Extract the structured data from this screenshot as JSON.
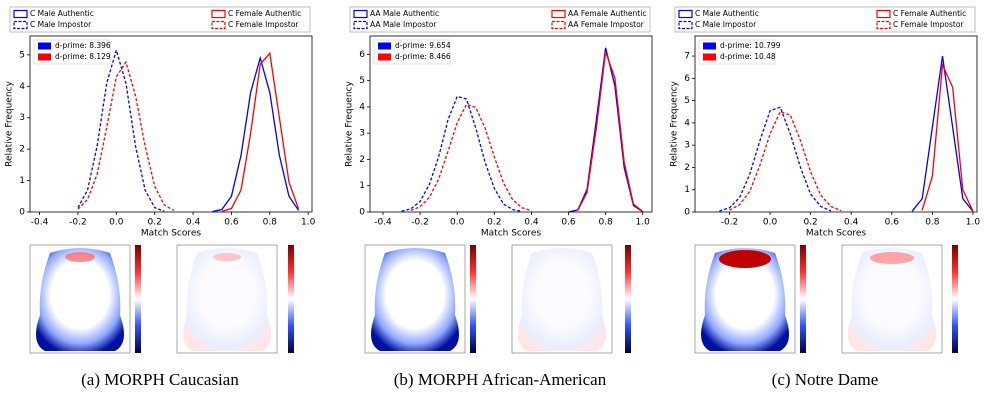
{
  "chart_data": [
    {
      "type": "line",
      "xlabel": "Match Scores",
      "ylabel": "Relative Frequency",
      "xlim": [
        -0.45,
        1.02
      ],
      "xticks": [
        -0.4,
        -0.2,
        {
          "value": 0,
          "label": "0.0"
        },
        0.2,
        0.4,
        0.6,
        0.8,
        {
          "value": 1,
          "label": "1.0"
        }
      ],
      "ylim": [
        0,
        5.6
      ],
      "yticks": [
        0,
        1,
        2,
        3,
        4,
        5
      ],
      "annotations": [
        {
          "text": "d-prime: 8.396",
          "color": "#0000ff"
        },
        {
          "text": "d-prime: 8.129",
          "color": "#ff0000"
        }
      ],
      "series": [
        {
          "name": "C Male Authentic",
          "color": "#0000ff",
          "dashed": false,
          "x": [
            0.5,
            0.55,
            0.6,
            0.65,
            0.7,
            0.75,
            0.8,
            0.85,
            0.9,
            0.95
          ],
          "values": [
            0.01,
            0.08,
            0.5,
            1.8,
            3.8,
            4.9,
            3.8,
            1.8,
            0.5,
            0.05
          ]
        },
        {
          "name": "C Male Impostor",
          "color": "#0000ff",
          "dashed": true,
          "x": [
            -0.2,
            -0.15,
            -0.1,
            -0.05,
            0,
            0.05,
            0.1,
            0.15,
            0.2,
            0.25
          ],
          "values": [
            0.14,
            0.7,
            2.1,
            4.1,
            5.15,
            4.1,
            2.1,
            0.7,
            0.14,
            0.02
          ]
        },
        {
          "name": "C Female Authentic",
          "color": "#ff0000",
          "dashed": false,
          "x": [
            0.55,
            0.6,
            0.65,
            0.7,
            0.75,
            0.8,
            0.85,
            0.9,
            0.95
          ],
          "values": [
            0.02,
            0.11,
            0.7,
            2.5,
            4.7,
            5.05,
            3.0,
            0.95,
            0.1
          ]
        },
        {
          "name": "C Female Impostor",
          "color": "#ff0000",
          "dashed": true,
          "x": [
            -0.2,
            -0.15,
            -0.1,
            -0.05,
            0,
            0.05,
            0.1,
            0.15,
            0.2,
            0.25,
            0.3
          ],
          "values": [
            0.09,
            0.4,
            1.2,
            2.7,
            4.3,
            4.77,
            3.7,
            2.1,
            0.82,
            0.22,
            0.05
          ]
        }
      ]
    },
    {
      "type": "line",
      "xlabel": "Match Scores",
      "ylabel": "Relative Frequency",
      "xlim": [
        -0.47,
        1.05
      ],
      "xticks": [
        -0.4,
        -0.2,
        {
          "value": 0,
          "label": "0.0"
        },
        0.2,
        0.4,
        0.6,
        0.8,
        {
          "value": 1,
          "label": "1.0"
        }
      ],
      "ylim": [
        0,
        6.7
      ],
      "yticks": [
        0,
        1,
        2,
        3,
        4,
        5,
        6
      ],
      "annotations": [
        {
          "text": "d-prime: 9.654",
          "color": "#0000ff"
        },
        {
          "text": "d-prime: 8.466",
          "color": "#ff0000"
        }
      ],
      "series": [
        {
          "name": "AA Male Authentic",
          "color": "#0000ff",
          "dashed": false,
          "x": [
            0.6,
            0.65,
            0.7,
            0.75,
            0.8,
            0.85,
            0.9,
            0.95,
            1.0
          ],
          "values": [
            0,
            0.08,
            0.86,
            3.5,
            6.25,
            4.8,
            1.7,
            0.25,
            0.01
          ]
        },
        {
          "name": "AA Male Impostor",
          "color": "#0000ff",
          "dashed": true,
          "x": [
            -0.3,
            -0.25,
            -0.2,
            -0.15,
            -0.1,
            -0.05,
            0,
            0.05,
            0.1,
            0.15,
            0.2,
            0.25,
            0.3,
            0.35
          ],
          "values": [
            0.03,
            0.12,
            0.4,
            1.05,
            2.1,
            3.5,
            4.4,
            4.3,
            3.2,
            1.9,
            0.9,
            0.3,
            0.09,
            0.02
          ]
        },
        {
          "name": "AA Female Authentic",
          "color": "#ff0000",
          "dashed": false,
          "x": [
            0.65,
            0.7,
            0.75,
            0.8,
            0.85,
            0.9,
            0.95,
            1.0
          ],
          "values": [
            0.06,
            0.75,
            3.2,
            6.1,
            5.1,
            1.9,
            0.3,
            0.02
          ]
        },
        {
          "name": "AA Female Impostor",
          "color": "#ff0000",
          "dashed": true,
          "x": [
            -0.25,
            -0.2,
            -0.15,
            -0.1,
            -0.05,
            0,
            0.05,
            0.1,
            0.15,
            0.2,
            0.25,
            0.3,
            0.35,
            0.4
          ],
          "values": [
            0.06,
            0.2,
            0.56,
            1.25,
            2.3,
            3.4,
            4.1,
            3.98,
            3.2,
            2.1,
            1.1,
            0.46,
            0.16,
            0.05
          ]
        }
      ]
    },
    {
      "type": "line",
      "xlabel": "Match Scores",
      "ylabel": "Relative Frequency",
      "xlim": [
        -0.37,
        1.02
      ],
      "xticks": [
        -0.2,
        {
          "value": 0,
          "label": "0.0"
        },
        0.2,
        0.4,
        0.6,
        0.8,
        {
          "value": 1,
          "label": "1.0"
        }
      ],
      "ylim": [
        0,
        7.9
      ],
      "yticks": [
        0,
        1,
        2,
        3,
        4,
        5,
        6,
        7
      ],
      "annotations": [
        {
          "text": "d-prime: 10.799",
          "color": "#0000ff"
        },
        {
          "text": "d-prime: 10.48",
          "color": "#ff0000"
        }
      ],
      "series": [
        {
          "name": "C Male Authentic",
          "color": "#0000ff",
          "dashed": false,
          "x": [
            0.7,
            0.75,
            0.8,
            0.85,
            0.9,
            0.95,
            1.0
          ],
          "values": [
            0.03,
            0.6,
            3.8,
            7.0,
            3.8,
            0.6,
            0.03
          ]
        },
        {
          "name": "C Male Impostor",
          "color": "#0000ff",
          "dashed": true,
          "x": [
            -0.25,
            -0.2,
            -0.15,
            -0.1,
            -0.05,
            0,
            0.05,
            0.1,
            0.15,
            0.2,
            0.25,
            0.3
          ],
          "values": [
            0.04,
            0.19,
            0.65,
            1.7,
            3.2,
            4.55,
            4.7,
            3.5,
            2.0,
            0.8,
            0.25,
            0.05
          ]
        },
        {
          "name": "C Female Authentic",
          "color": "#ff0000",
          "dashed": false,
          "x": [
            0.75,
            0.8,
            0.85,
            0.9,
            0.95,
            1.0
          ],
          "values": [
            0.08,
            1.6,
            6.6,
            5.6,
            1.0,
            0.04
          ]
        },
        {
          "name": "C Female Impostor",
          "color": "#ff0000",
          "dashed": true,
          "x": [
            -0.2,
            -0.15,
            -0.1,
            -0.05,
            0,
            0.05,
            0.1,
            0.15,
            0.2,
            0.25,
            0.3,
            0.35
          ],
          "values": [
            0.08,
            0.33,
            0.93,
            2.1,
            3.5,
            4.5,
            4.35,
            3.2,
            1.8,
            0.75,
            0.25,
            0.06
          ]
        }
      ]
    }
  ],
  "captions": [
    "(a) MORPH Caucasian",
    "(b) MORPH African-American",
    "(c) Notre Dame"
  ]
}
